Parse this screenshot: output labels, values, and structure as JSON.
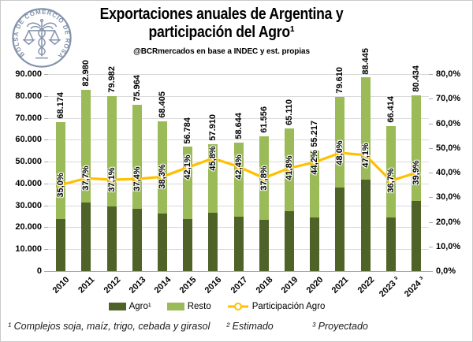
{
  "header": {
    "title_line1": "Exportaciones anuales de Argentina y",
    "title_line2": "participación del Agro¹",
    "subtitle": "@BCRmercados en base a INDEC y est. propias",
    "logo_text": "BOLSA DE COMERCIO DE ROSARIO"
  },
  "chart_data": {
    "type": "bar",
    "stacked": true,
    "title": "Exportaciones anuales de Argentina y participación del Agro¹",
    "categories": [
      "2010",
      "2011",
      "2012",
      "2013",
      "2014",
      "2015",
      "2016",
      "2017",
      "2018",
      "2019",
      "2020",
      "2021",
      "2022",
      "2023 ²",
      "2024 ³"
    ],
    "totals": [
      68174,
      82980,
      79982,
      75964,
      68405,
      56784,
      57910,
      58644,
      61556,
      65110,
      55217,
      79610,
      88445,
      66414,
      80434
    ],
    "total_labels": [
      "68.174",
      "82.980",
      "79.982",
      "75.964",
      "68.405",
      "56.784",
      "57.910",
      "58.644",
      "61.556",
      "65.110",
      "55.217",
      "79.610",
      "88.445",
      "66.414",
      "80.434"
    ],
    "participacion_pct": [
      35.0,
      37.7,
      37.1,
      37.4,
      38.3,
      42.1,
      45.8,
      42.4,
      37.8,
      41.8,
      44.2,
      48.0,
      47.1,
      36.7,
      39.9
    ],
    "participacion_labels": [
      "35,0%",
      "37,7%",
      "37,1%",
      "37,4%",
      "38,3%",
      "42,1%",
      "45,8%",
      "42,4%",
      "37,8%",
      "41,8%",
      "44,2%",
      "48,0%",
      "47,1%",
      "36,7%",
      "39,9%"
    ],
    "series": [
      {
        "name": "Agro¹",
        "type": "bar-stack-bottom",
        "color": "#4f6228",
        "note": "value = total × participación"
      },
      {
        "name": "Resto",
        "type": "bar-stack-top",
        "color": "#9bbb59"
      },
      {
        "name": "Participación Agro",
        "type": "line",
        "axis": "right",
        "color": "#ffc000"
      }
    ],
    "left_axis": {
      "min": 0,
      "max": 90000,
      "step": 10000,
      "tick_labels": [
        "90.000",
        "80.000",
        "70.000",
        "60.000",
        "50.000",
        "40.000",
        "30.000",
        "20.000",
        "10.000",
        "0"
      ]
    },
    "right_axis": {
      "min": 0,
      "max": 80,
      "step": 10,
      "tick_labels": [
        "80,0%",
        "70,0%",
        "60,0%",
        "50,0%",
        "40,0%",
        "30,0%",
        "20,0%",
        "10,0%",
        "0,0%"
      ]
    },
    "grid": true,
    "legend_position": "bottom"
  },
  "legend": {
    "items": [
      {
        "label": "Agro¹"
      },
      {
        "label": "Resto"
      },
      {
        "label": "Participación Agro"
      }
    ]
  },
  "footnotes": {
    "note1": "¹ Complejos soja, maíz, trigo, cebada y girasol",
    "note2": "² Estimado",
    "note3": "³ Proyectado"
  },
  "colors": {
    "agro": "#4f6228",
    "resto": "#9bbb59",
    "line": "#ffc000",
    "grid": "#d9d9d9",
    "baseline": "#a6a6a6",
    "logo": "#8493ac"
  }
}
